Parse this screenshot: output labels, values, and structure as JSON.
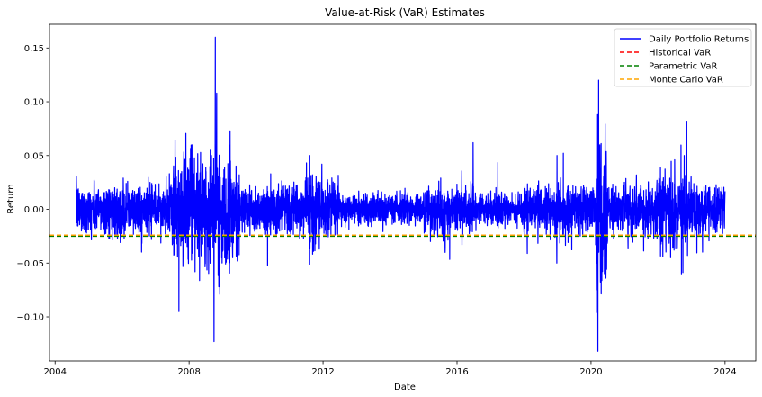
{
  "chart_data": {
    "type": "line",
    "title": "Value-at-Risk (VaR) Estimates",
    "xlabel": "Date",
    "ylabel": "Return",
    "x_range": [
      "2003-11-01",
      "2024-12-01"
    ],
    "ylim": [
      -0.141,
      0.172
    ],
    "x_ticks": [
      "2004",
      "2008",
      "2012",
      "2016",
      "2020",
      "2024"
    ],
    "y_ticks": [
      "0.15",
      "0.10",
      "0.05",
      "0.00",
      "−0.05",
      "−0.10"
    ],
    "legend_position": "top-right",
    "grid": false,
    "series": [
      {
        "name": "Daily Portfolio Returns",
        "kind": "line",
        "color": "#0000ff",
        "x_start": "2004-08-20",
        "x_end": "2024-01-01",
        "base_noise": 0.011,
        "calm_noise": 0.007,
        "extremes": [
          {
            "date": "2008-09-29",
            "value": -0.123
          },
          {
            "date": "2008-10-13",
            "value": 0.16
          },
          {
            "date": "2008-10-28",
            "value": 0.108
          },
          {
            "date": "2008-11-20",
            "value": -0.072
          },
          {
            "date": "2008-12-01",
            "value": -0.079
          },
          {
            "date": "2009-03-23",
            "value": 0.073
          },
          {
            "date": "2008-02-01",
            "value": 0.06
          },
          {
            "date": "2008-06-01",
            "value": 0.083
          },
          {
            "date": "2010-05-06",
            "value": -0.052
          },
          {
            "date": "2011-08-08",
            "value": -0.051
          },
          {
            "date": "2011-08-09",
            "value": 0.05
          },
          {
            "date": "2015-08-24",
            "value": -0.04
          },
          {
            "date": "2016-06-24",
            "value": 0.062
          },
          {
            "date": "2018-02-05",
            "value": -0.041
          },
          {
            "date": "2018-12-24",
            "value": -0.05
          },
          {
            "date": "2018-12-26",
            "value": 0.05
          },
          {
            "date": "2020-02-27",
            "value": -0.05
          },
          {
            "date": "2020-03-09",
            "value": -0.075
          },
          {
            "date": "2020-03-12",
            "value": -0.096
          },
          {
            "date": "2020-03-13",
            "value": 0.088
          },
          {
            "date": "2020-03-16",
            "value": -0.132
          },
          {
            "date": "2020-03-24",
            "value": 0.12
          },
          {
            "date": "2020-04-06",
            "value": 0.06
          },
          {
            "date": "2020-06-11",
            "value": -0.064
          },
          {
            "date": "2022-05-18",
            "value": -0.045
          },
          {
            "date": "2022-09-13",
            "value": -0.06
          },
          {
            "date": "2022-11-10",
            "value": 0.082
          },
          {
            "date": "2022-10-13",
            "value": 0.05
          }
        ],
        "volatile_periods": [
          {
            "start": "2007-07-01",
            "end": "2009-07-01",
            "scale": 2.2
          },
          {
            "start": "2010-05-01",
            "end": "2010-07-01",
            "scale": 1.5
          },
          {
            "start": "2011-08-01",
            "end": "2011-12-01",
            "scale": 1.7
          },
          {
            "start": "2020-02-20",
            "end": "2020-06-30",
            "scale": 3.0
          },
          {
            "start": "2022-01-01",
            "end": "2022-12-31",
            "scale": 1.6
          }
        ],
        "calm_periods": [
          {
            "start": "2012-07-01",
            "end": "2014-12-31"
          },
          {
            "start": "2016-07-01",
            "end": "2017-12-31"
          }
        ]
      },
      {
        "name": "Historical VaR",
        "kind": "hline",
        "value": -0.0245,
        "color": "#ff0000",
        "dash": "dashed"
      },
      {
        "name": "Parametric VaR",
        "kind": "hline",
        "value": -0.025,
        "color": "#008000",
        "dash": "dashed"
      },
      {
        "name": "Monte Carlo VaR",
        "kind": "hline",
        "value": -0.024,
        "color": "#ffa500",
        "dash": "dashed"
      }
    ]
  }
}
